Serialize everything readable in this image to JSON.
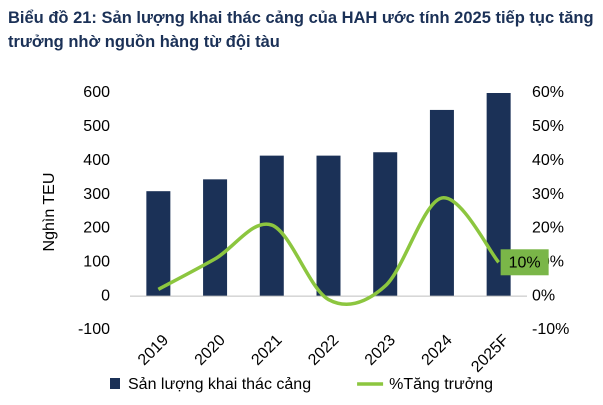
{
  "chart_data": {
    "type": "bar-line",
    "title": "Biểu đồ 21: Sản lượng khai thác cảng của HAH ước tính 2025 tiếp tục tăng trưởng nhờ nguồn hàng từ đội tàu",
    "y_label": "Nghìn TEU",
    "categories": [
      "2019",
      "2020",
      "2021",
      "2022",
      "2023",
      "2024",
      "2025F"
    ],
    "series": [
      {
        "name": "Sản lượng khai thác cảng",
        "color": "#1b3157",
        "type": "bar",
        "values": [
          310,
          345,
          415,
          415,
          425,
          550,
          600
        ]
      },
      {
        "name": "%Tăng trưởng",
        "color": "#8cc63f",
        "type": "line",
        "axis": "y2",
        "smooth": true,
        "values": [
          2,
          11,
          21,
          -1,
          3,
          29,
          10
        ],
        "value_labels": [
          null,
          null,
          null,
          null,
          null,
          null,
          "10%"
        ]
      }
    ],
    "ylim": [
      -100,
      600
    ],
    "yticks": [
      -100,
      0,
      100,
      200,
      300,
      400,
      500,
      600
    ],
    "y2lim": [
      -10,
      60
    ],
    "y2ticks": [
      {
        "value": -10,
        "label": "-10%"
      },
      {
        "value": 0,
        "label": "0%"
      },
      {
        "value": 10,
        "label": "10%"
      },
      {
        "value": 20,
        "label": "20%"
      },
      {
        "value": 30,
        "label": "30%"
      },
      {
        "value": 40,
        "label": "40%"
      },
      {
        "value": 50,
        "label": "50%"
      },
      {
        "value": 60,
        "label": "60%"
      }
    ],
    "grid": false,
    "legend": "bottom"
  }
}
